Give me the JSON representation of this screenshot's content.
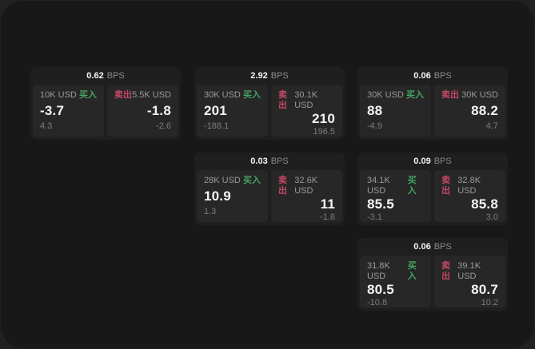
{
  "labels": {
    "bps_unit": "BPS",
    "buy": "买入",
    "sell": "卖出"
  },
  "colors": {
    "page_bg": "#212121",
    "window_bg": "#181818",
    "card_bg": "#1f1f1f",
    "panel_bg": "#272727",
    "value": "#f5f5f5",
    "label": "#9a9a9a",
    "label_dim": "#8a8a8a",
    "muted": "#7d7d7d",
    "buy": "#46a35f",
    "sell": "#c44866"
  },
  "cards": [
    {
      "bps": "0.62",
      "buy": {
        "notional": "10K USD",
        "value": "-3.7",
        "sub": "4.3"
      },
      "sell": {
        "notional": "5.5K USD",
        "value": "-1.8",
        "sub": "-2.6"
      }
    },
    {
      "bps": "2.92",
      "buy": {
        "notional": "30K USD",
        "value": "201",
        "sub": "-188.1"
      },
      "sell": {
        "notional": "30.1K USD",
        "value": "210",
        "sub": "196.5"
      }
    },
    {
      "bps": "0.06",
      "buy": {
        "notional": "30K USD",
        "value": "88",
        "sub": "-4.9"
      },
      "sell": {
        "notional": "30K USD",
        "value": "88.2",
        "sub": "4.7"
      }
    },
    {
      "bps": "0.03",
      "buy": {
        "notional": "28K USD",
        "value": "10.9",
        "sub": "1.3"
      },
      "sell": {
        "notional": "32.6K USD",
        "value": "11",
        "sub": "-1.8"
      }
    },
    {
      "bps": "0.09",
      "buy": {
        "notional": "34.1K USD",
        "value": "85.5",
        "sub": "-3.1"
      },
      "sell": {
        "notional": "32.8K USD",
        "value": "85.8",
        "sub": "3.0"
      }
    },
    {
      "bps": "0.06",
      "buy": {
        "notional": "31.8K USD",
        "value": "80.5",
        "sub": "-10.8"
      },
      "sell": {
        "notional": "39.1K USD",
        "value": "80.7",
        "sub": "10.2"
      }
    }
  ]
}
